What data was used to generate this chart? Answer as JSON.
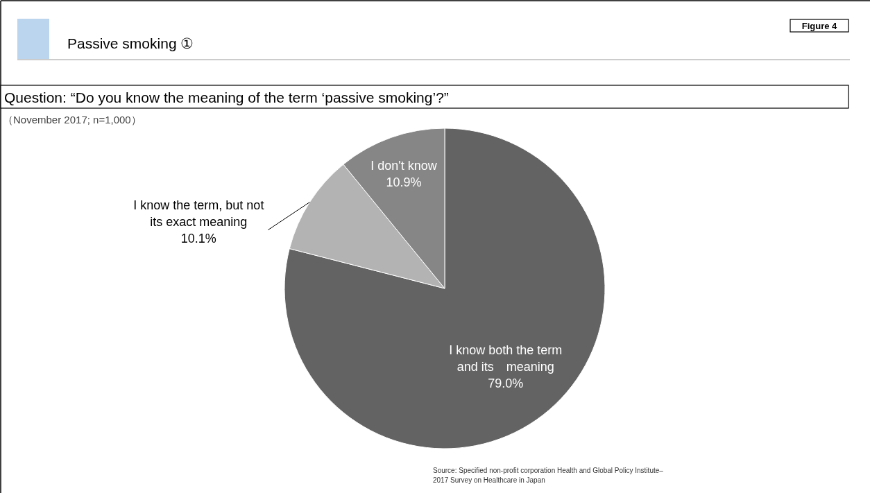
{
  "chart_data": {
    "type": "pie",
    "title": "Passive smoking ①",
    "subtitle": "Question: “Do you know the meaning of the term ‘passive smoking’?”",
    "categories": [
      "I know both the term\nand its　meaning",
      "I know the term, but not\nits exact meaning",
      "I don't know"
    ],
    "values": [
      79.0,
      10.1,
      10.9
    ],
    "colors": [
      "#636363",
      "#b3b3b3",
      "#868686"
    ],
    "value_labels": [
      "79.0%",
      "10.1%",
      "10.9%"
    ],
    "annotations": [
      "Figure 4",
      "（November 2017; n=1,000）",
      "Source: Specified non-profit corporation Health and Global Policy Institute–\n2017 Survey on Healthcare in Japan"
    ]
  }
}
